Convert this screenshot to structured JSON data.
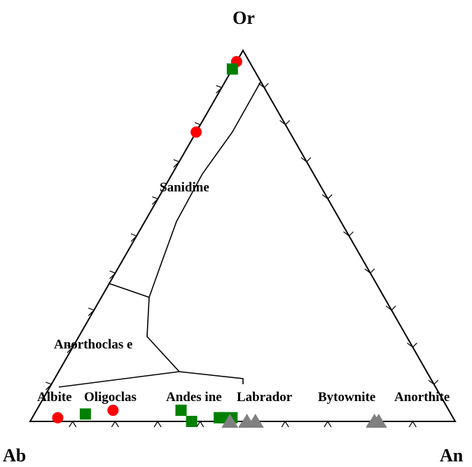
{
  "chart_data": {
    "type": "ternary-scatter",
    "corners": {
      "top": "Or",
      "bottom_left": "Ab",
      "bottom_right": "An"
    },
    "field_labels": [
      "Sanidine",
      "Anorthoclas e",
      "Albite",
      "Oligoclas",
      "Andes ine",
      "Labrador",
      "Bytownite",
      "Anorthite"
    ],
    "ticks_per_side": 9,
    "series": [
      {
        "marker": "circle",
        "color": "#ff0000",
        "points": [
          {
            "An": 0.0,
            "Ab": 0.03,
            "Or": 0.97
          },
          {
            "An": 0.0,
            "Ab": 0.22,
            "Or": 0.78
          },
          {
            "An": 0.06,
            "Ab": 0.93,
            "Or": 0.01
          },
          {
            "An": 0.18,
            "Ab": 0.79,
            "Or": 0.03
          }
        ]
      },
      {
        "marker": "square",
        "color": "#008000",
        "points": [
          {
            "An": 0.0,
            "Ab": 0.05,
            "Or": 0.95
          },
          {
            "An": 0.12,
            "Ab": 0.86,
            "Or": 0.02
          },
          {
            "An": 0.34,
            "Ab": 0.63,
            "Or": 0.03
          },
          {
            "An": 0.38,
            "Ab": 0.62,
            "Or": 0.0
          },
          {
            "An": 0.44,
            "Ab": 0.55,
            "Or": 0.01
          },
          {
            "An": 0.45,
            "Ab": 0.54,
            "Or": 0.01
          },
          {
            "An": 0.47,
            "Ab": 0.52,
            "Or": 0.01
          }
        ]
      },
      {
        "marker": "triangle",
        "color": "#808080",
        "points": [
          {
            "An": 0.47,
            "Ab": 0.53,
            "Or": 0.0
          },
          {
            "An": 0.51,
            "Ab": 0.49,
            "Or": 0.0
          },
          {
            "An": 0.53,
            "Ab": 0.47,
            "Or": 0.0
          },
          {
            "An": 0.81,
            "Ab": 0.19,
            "Or": 0.0
          },
          {
            "An": 0.82,
            "Ab": 0.18,
            "Or": 0.0
          }
        ]
      }
    ]
  }
}
